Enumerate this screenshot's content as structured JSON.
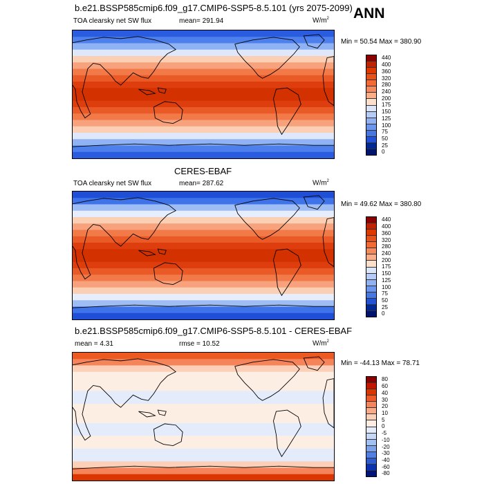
{
  "season": "ANN",
  "panels": [
    {
      "title": "b.e21.BSSP585cmip6.f09_g17.CMIP6-SSP5-8.5.101 (yrs 2075-2099)",
      "variable": "TOA clearsky net SW flux",
      "mean_label": "mean= 291.94",
      "unit_base": "W/m",
      "unit_exp": "2",
      "minmax": "Min =  50.54 Max = 380.90",
      "cbar_labels": [
        "440",
        "400",
        "360",
        "320",
        "280",
        "240",
        "200",
        "175",
        "150",
        "125",
        "100",
        "75",
        "50",
        "25",
        "0"
      ],
      "cbar_colors": [
        "#8b0000",
        "#c22200",
        "#de3a00",
        "#ea5118",
        "#f26a36",
        "#f78a5c",
        "#fbae88",
        "#fde0cc",
        "#dbe6fb",
        "#b6ccf7",
        "#91b1f2",
        "#6c95ec",
        "#4677e3",
        "#2452d4",
        "#002896",
        "#00146e"
      ],
      "band_colors": [
        "#2a5ce0",
        "#4d80ec",
        "#8fb2f4",
        "#dfe8fb",
        "#fbcfb4",
        "#f7a27c",
        "#f27a48",
        "#ea5a26",
        "#de3e0e",
        "#d43100",
        "#d43100",
        "#de3e0e",
        "#ea5a26",
        "#f27a48",
        "#f7a27c",
        "#fbcfb4",
        "#dfe8fb",
        "#8fb2f4",
        "#4d80ec",
        "#2a5ce0"
      ]
    },
    {
      "title": "CERES-EBAF",
      "variable": "TOA clearsky net SW flux",
      "mean_label": "mean= 287.62",
      "unit_base": "W/m",
      "unit_exp": "2",
      "minmax": "Min =  49.62 Max = 380.80",
      "cbar_labels": [
        "440",
        "400",
        "360",
        "320",
        "280",
        "240",
        "200",
        "175",
        "150",
        "125",
        "100",
        "75",
        "50",
        "25",
        "0"
      ],
      "cbar_colors": [
        "#8b0000",
        "#c22200",
        "#de3a00",
        "#ea5118",
        "#f26a36",
        "#f78a5c",
        "#fbae88",
        "#fde0cc",
        "#dbe6fb",
        "#b6ccf7",
        "#91b1f2",
        "#6c95ec",
        "#4677e3",
        "#2452d4",
        "#002896",
        "#00146e"
      ],
      "band_colors": [
        "#1f4fd6",
        "#3f73ea",
        "#9fbdf5",
        "#e6edfc",
        "#fbcfb4",
        "#f7a27c",
        "#f27a48",
        "#ea5a26",
        "#de3e0e",
        "#d43100",
        "#d43100",
        "#de3e0e",
        "#ea5a26",
        "#f27a48",
        "#f7a27c",
        "#fbcfb4",
        "#e6edfc",
        "#9fbdf5",
        "#3f73ea",
        "#1f4fd6"
      ]
    },
    {
      "title": "b.e21.BSSP585cmip6.f09_g17.CMIP6-SSP5-8.5.101 - CERES-EBAF",
      "mean_label": "mean =   4.31",
      "rmse_label": "rmse =  10.52",
      "unit_base": "W/m",
      "unit_exp": "2",
      "minmax": "Min = -44.13 Max =  78.71",
      "cbar_labels": [
        "80",
        "60",
        "40",
        "30",
        "20",
        "10",
        "5",
        "0",
        "-5",
        "-10",
        "-20",
        "-30",
        "-40",
        "-60",
        "-80"
      ],
      "cbar_colors": [
        "#8b0000",
        "#c01800",
        "#dc3600",
        "#ee5a28",
        "#f5845a",
        "#f9aa88",
        "#fcd0b8",
        "#fdeee4",
        "#e4ecfc",
        "#c6d8f8",
        "#a3c0f3",
        "#7ca2ec",
        "#5280e2",
        "#2d5bd2",
        "#0a32b0",
        "#00147a"
      ],
      "band_colors": [
        "#ec5a22",
        "#f5845a",
        "#fcd0b8",
        "#fdeee4",
        "#fdeee4",
        "#fdeee4",
        "#e4ecfc",
        "#e4ecfc",
        "#fdeee4",
        "#fdeee4",
        "#fdeee4",
        "#e4ecfc",
        "#e4ecfc",
        "#fdeee4",
        "#fdeee4",
        "#e4ecfc",
        "#e4ecfc",
        "#fcd0b8",
        "#f5845a",
        "#dc3600"
      ]
    }
  ]
}
